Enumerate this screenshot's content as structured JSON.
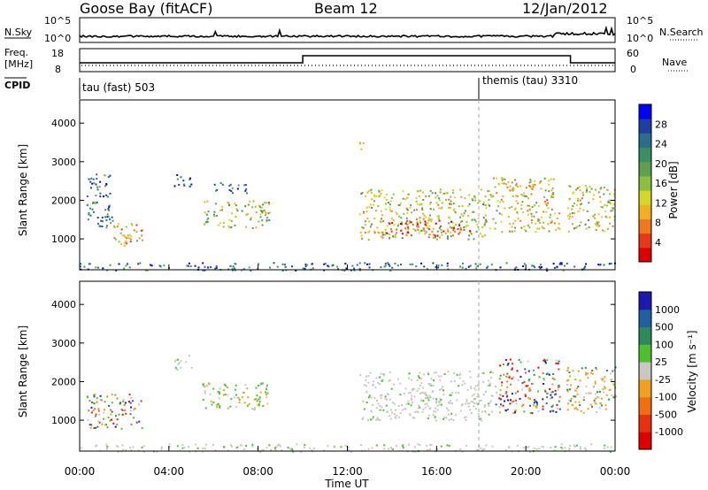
{
  "header": {
    "station": "Goose Bay (fitACF)",
    "beam": "Beam 12",
    "date": "12/Jan/2012"
  },
  "top_panels": {
    "nsky_label": "N.Sky",
    "nsky_ticks": [
      "10^5",
      "10^0"
    ],
    "nsearch_label": "N.Search",
    "nsearch_ticks": [
      "10^5",
      "10^0"
    ],
    "freq_label": "Freq.",
    "freq_unit": "[MHz]",
    "freq_ticks": [
      "18",
      "8"
    ],
    "nave_label": "Nave",
    "nave_ticks": [
      "60",
      "0"
    ],
    "cpid_label": "CPID",
    "cpid_modes": [
      {
        "label": "tau (fast) 503",
        "start_hour": 0,
        "end_hour": 18
      },
      {
        "label": "themis (tau) 3310",
        "start_hour": 18,
        "end_hour": 24
      }
    ],
    "freq_steps": [
      {
        "start_hour": 0,
        "end_hour": 10,
        "value": "lower"
      },
      {
        "start_hour": 10,
        "end_hour": 22,
        "value": "higher"
      },
      {
        "start_hour": 22,
        "end_hour": 24,
        "value": "lower"
      }
    ]
  },
  "chart_data": [
    {
      "type": "heatmap",
      "panel": "power",
      "ylabel": "Slant Range [km]",
      "xlabel": "",
      "ylim": [
        200,
        4600
      ],
      "xlim": [
        0,
        24
      ],
      "yticks": [
        "4000",
        "3000",
        "2000",
        "1000"
      ],
      "colorbar_label": "Power [dB]",
      "colorbar_ticks": [
        "28",
        "24",
        "20",
        "16",
        "12",
        "8",
        "4"
      ],
      "colorbar_colors": [
        "#0000ff",
        "#1f3fa0",
        "#2a6e8c",
        "#3c8f64",
        "#5fa050",
        "#8ac03c",
        "#d4d628",
        "#f0b020",
        "#f07818",
        "#e83818",
        "#e00000"
      ],
      "scatter_regions": [
        {
          "t0": 0.3,
          "t1": 1.5,
          "r0": 1300,
          "r1": 2700,
          "level": 0.25
        },
        {
          "t0": 1.5,
          "t1": 2.8,
          "r0": 800,
          "r1": 1500,
          "level": 0.65
        },
        {
          "t0": 4.2,
          "t1": 5.0,
          "r0": 2300,
          "r1": 2700,
          "level": 0.2
        },
        {
          "t0": 5.5,
          "t1": 8.5,
          "r0": 1300,
          "r1": 2000,
          "level": 0.5
        },
        {
          "t0": 6.0,
          "t1": 7.5,
          "r0": 2200,
          "r1": 2500,
          "level": 0.25
        },
        {
          "t0": 12.5,
          "t1": 12.8,
          "r0": 3300,
          "r1": 3600,
          "level": 0.7
        },
        {
          "t0": 12.5,
          "t1": 18.5,
          "r0": 1000,
          "r1": 2300,
          "level": 0.55
        },
        {
          "t0": 13.5,
          "t1": 17.5,
          "r0": 1100,
          "r1": 1500,
          "level": 0.85
        },
        {
          "t0": 18.5,
          "t1": 21.5,
          "r0": 1200,
          "r1": 2600,
          "level": 0.6
        },
        {
          "t0": 21.8,
          "t1": 24.0,
          "r0": 1200,
          "r1": 2400,
          "level": 0.55
        },
        {
          "t0": 0.0,
          "t1": 24.0,
          "r0": 200,
          "r1": 400,
          "level": 0.2
        }
      ]
    },
    {
      "type": "heatmap",
      "panel": "velocity",
      "ylabel": "Slant Range [km]",
      "xlabel": "Time UT",
      "ylim": [
        200,
        4600
      ],
      "xlim": [
        0,
        24
      ],
      "yticks": [
        "4000",
        "3000",
        "2000",
        "1000"
      ],
      "xticks": [
        "00:00",
        "04:00",
        "08:00",
        "12:00",
        "16:00",
        "20:00",
        "00:00"
      ],
      "colorbar_label": "Velocity [m s⁻¹]",
      "colorbar_ticks": [
        "1000",
        "500",
        "100",
        "25",
        "-25",
        "-100",
        "-500",
        "-1000"
      ],
      "colorbar_colors": [
        "#1a1ab0",
        "#2060a0",
        "#2e8a5a",
        "#4ec030",
        "#c8c8c0",
        "#f0a020",
        "#f07010",
        "#e83010",
        "#e00000"
      ],
      "scatter_regions": [
        {
          "t0": 0.3,
          "t1": 2.8,
          "r0": 800,
          "r1": 1700,
          "level": "mixed"
        },
        {
          "t0": 4.2,
          "t1": 5.0,
          "r0": 2300,
          "r1": 2700,
          "level": "gray"
        },
        {
          "t0": 5.5,
          "t1": 8.5,
          "r0": 1300,
          "r1": 2000,
          "level": "green"
        },
        {
          "t0": 12.5,
          "t1": 18.5,
          "r0": 1000,
          "r1": 2300,
          "level": "gray"
        },
        {
          "t0": 18.5,
          "t1": 21.5,
          "r0": 1200,
          "r1": 2600,
          "level": "mixed"
        },
        {
          "t0": 21.8,
          "t1": 24.0,
          "r0": 1200,
          "r1": 2400,
          "level": "orange"
        },
        {
          "t0": 0.0,
          "t1": 24.0,
          "r0": 200,
          "r1": 400,
          "level": "gray"
        }
      ]
    }
  ]
}
